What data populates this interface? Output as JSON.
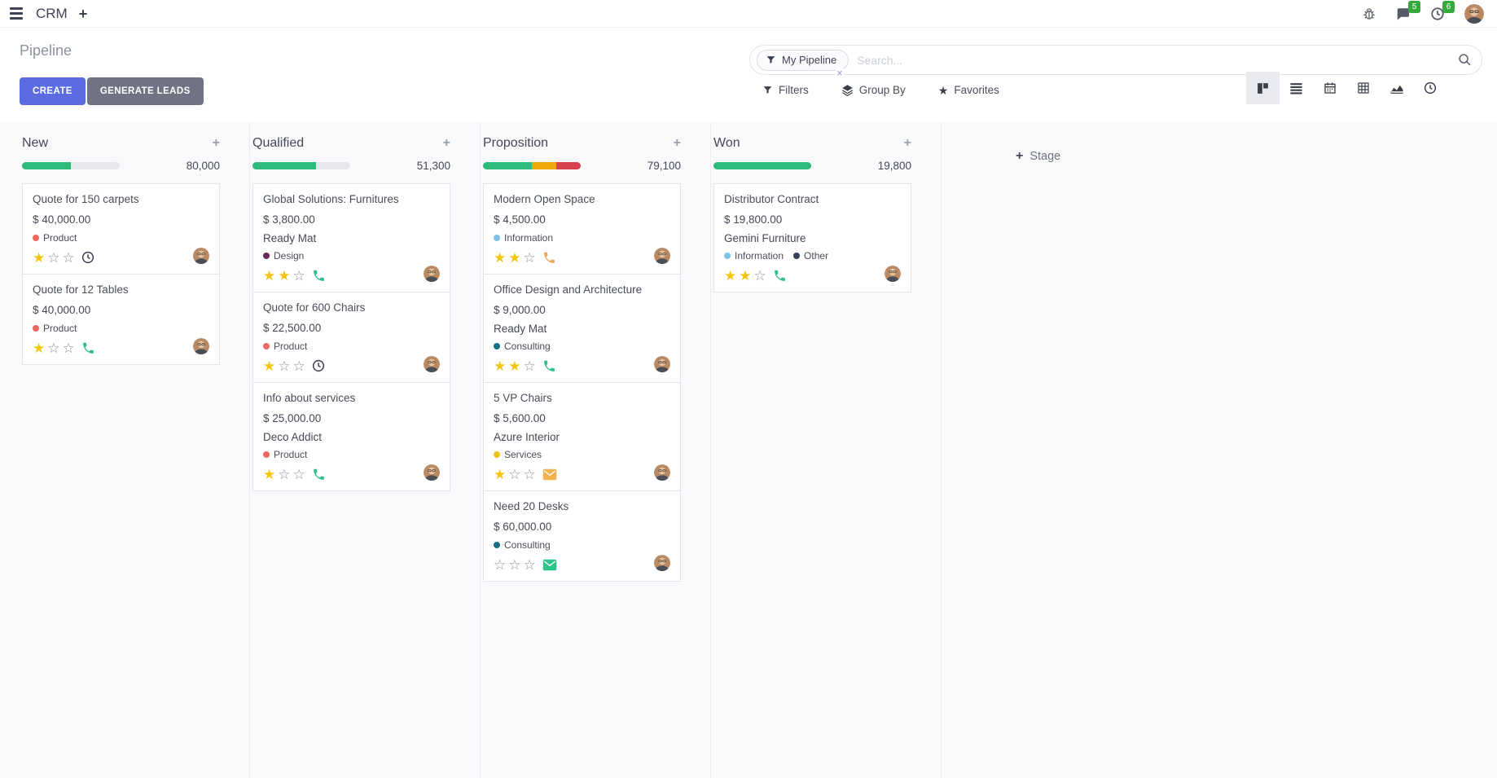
{
  "navbar": {
    "app_name": "CRM",
    "messages_badge": "5",
    "activities_badge": "6"
  },
  "control_panel": {
    "title": "Pipeline",
    "create_label": "CREATE",
    "generate_leads_label": "GENERATE LEADS",
    "search": {
      "facet_label": "My Pipeline",
      "facet_remove_icon": "×",
      "placeholder": "Search..."
    },
    "filters_label": "Filters",
    "group_by_label": "Group By",
    "favorites_label": "Favorites",
    "view_switcher": [
      {
        "name": "kanban",
        "active": true
      },
      {
        "name": "list",
        "active": false
      },
      {
        "name": "calendar",
        "active": false
      },
      {
        "name": "pivot",
        "active": false
      },
      {
        "name": "graph",
        "active": false
      },
      {
        "name": "activity",
        "active": false
      }
    ]
  },
  "colors": {
    "accent": "#5b6ce0",
    "secondary_button": "#6f7384",
    "success": "#2eba79",
    "warning": "#f0a70a",
    "danger": "#d8414e",
    "star_filled": "#f3c50f",
    "badge_green": "#36a93d",
    "progress_track": "#e6e7ec"
  },
  "kanban": {
    "add_stage_label": "Stage",
    "columns": [
      {
        "name": "New",
        "amount": "80,000",
        "progress_segments": [
          {
            "color": "#2eba79",
            "pct": 50
          }
        ],
        "cards": [
          {
            "title": "Quote for 150 carpets",
            "price": "$ 40,000.00",
            "tags": [
              {
                "label": "Product",
                "color": "#ec6860"
              }
            ],
            "stars": 1,
            "action_icon": {
              "type": "clock",
              "color": "#3a3d49"
            }
          },
          {
            "title": "Quote for 12 Tables",
            "price": "$ 40,000.00",
            "tags": [
              {
                "label": "Product",
                "color": "#ec6860"
              }
            ],
            "stars": 1,
            "action_icon": {
              "type": "phone",
              "color": "#2fbf8a"
            }
          }
        ]
      },
      {
        "name": "Qualified",
        "amount": "51,300",
        "progress_segments": [
          {
            "color": "#2eba79",
            "pct": 65
          }
        ],
        "cards": [
          {
            "title": "Global Solutions: Furnitures",
            "price": "$ 3,800.00",
            "company": "Ready Mat",
            "tags": [
              {
                "label": "Design",
                "color": "#692b5c"
              }
            ],
            "stars": 2,
            "action_icon": {
              "type": "phone",
              "color": "#2fbf8a"
            }
          },
          {
            "title": "Quote for 600 Chairs",
            "price": "$ 22,500.00",
            "tags": [
              {
                "label": "Product",
                "color": "#ec6860"
              }
            ],
            "stars": 1,
            "action_icon": {
              "type": "clock",
              "color": "#3a3d49"
            }
          },
          {
            "title": "Info about services",
            "price": "$ 25,000.00",
            "company": "Deco Addict",
            "tags": [
              {
                "label": "Product",
                "color": "#ec6860"
              }
            ],
            "stars": 1,
            "action_icon": {
              "type": "phone",
              "color": "#2fbf8a"
            }
          }
        ]
      },
      {
        "name": "Proposition",
        "amount": "79,100",
        "progress_segments": [
          {
            "color": "#2eba79",
            "pct": 50
          },
          {
            "color": "#f0a70a",
            "pct": 25
          },
          {
            "color": "#d8414e",
            "pct": 25
          }
        ],
        "cards": [
          {
            "title": "Modern Open Space",
            "price": "$ 4,500.00",
            "tags": [
              {
                "label": "Information",
                "color": "#7ec1e8"
              }
            ],
            "stars": 2,
            "action_icon": {
              "type": "phone",
              "color": "#f0a55c"
            }
          },
          {
            "title": "Office Design and Architecture",
            "price": "$ 9,000.00",
            "company": "Ready Mat",
            "tags": [
              {
                "label": "Consulting",
                "color": "#147083"
              }
            ],
            "stars": 2,
            "action_icon": {
              "type": "phone",
              "color": "#2fbf8a"
            }
          },
          {
            "title": "5 VP Chairs",
            "price": "$ 5,600.00",
            "company": "Azure Interior",
            "tags": [
              {
                "label": "Services",
                "color": "#eec21c"
              }
            ],
            "stars": 1,
            "action_icon": {
              "type": "envelope",
              "color": "#f0b24e"
            }
          },
          {
            "title": "Need 20 Desks",
            "price": "$ 60,000.00",
            "tags": [
              {
                "label": "Consulting",
                "color": "#147083"
              }
            ],
            "stars": 0,
            "action_icon": {
              "type": "envelope",
              "color": "#2ec489"
            }
          }
        ]
      },
      {
        "name": "Won",
        "amount": "19,800",
        "progress_segments": [
          {
            "color": "#2eba79",
            "pct": 100
          }
        ],
        "cards": [
          {
            "title": "Distributor Contract",
            "price": "$ 19,800.00",
            "company": "Gemini Furniture",
            "tags": [
              {
                "label": "Information",
                "color": "#7ec1e8"
              },
              {
                "label": "Other",
                "color": "#33415c"
              }
            ],
            "stars": 2,
            "action_icon": {
              "type": "phone",
              "color": "#2fbf8a"
            }
          }
        ]
      }
    ]
  }
}
